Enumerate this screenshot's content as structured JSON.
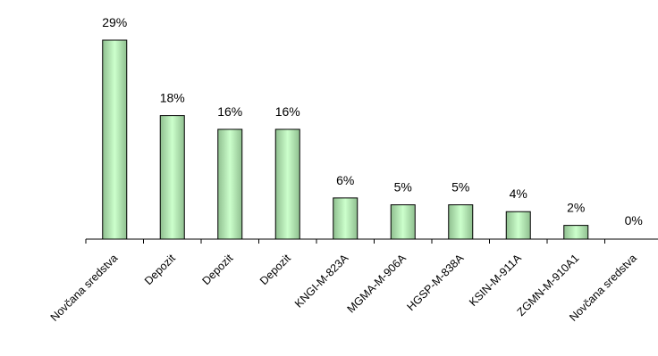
{
  "chart_data": {
    "type": "bar",
    "categories": [
      "Novčana sredstva",
      "Depozit",
      "Depozit",
      "Depozit",
      "KNGI-M-823A",
      "MGMA-M-906A",
      "HGSP-M-838A",
      "KSIN-M-911A",
      "ZGMN-M-910A1",
      "Novčana sredstva"
    ],
    "values": [
      29,
      18,
      16,
      16,
      6,
      5,
      5,
      4,
      2,
      0
    ],
    "value_labels": [
      "29%",
      "18%",
      "16%",
      "16%",
      "6%",
      "5%",
      "5%",
      "4%",
      "2%",
      "0%"
    ],
    "unit": "%",
    "ylim": [
      0,
      29
    ],
    "grid": false,
    "legend": "none",
    "bar_gradient": [
      "#8fbf8f",
      "#ccffcc"
    ],
    "bar_stroke": "#000000",
    "axis_color": "#000000"
  }
}
